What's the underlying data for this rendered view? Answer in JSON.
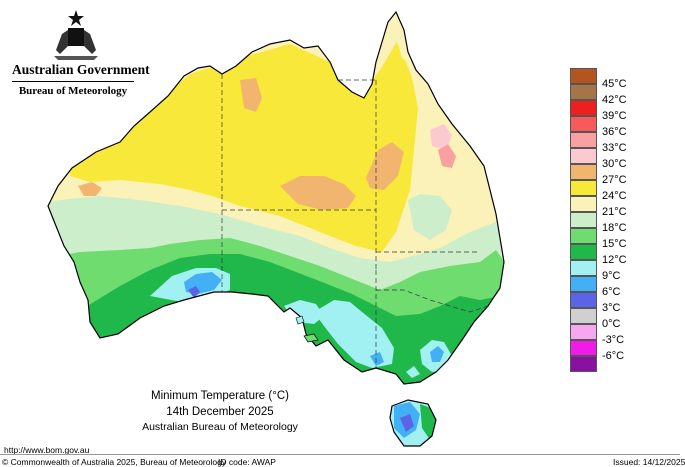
{
  "header": {
    "gov_title": "Australian Government",
    "bureau": "Bureau of Meteorology"
  },
  "legend": {
    "items": [
      {
        "label": "45°C",
        "color": "#b4541e"
      },
      {
        "label": "42°C",
        "color": "#a57449"
      },
      {
        "label": "39°C",
        "color": "#ef1f1f"
      },
      {
        "label": "36°C",
        "color": "#f65a5a"
      },
      {
        "label": "33°C",
        "color": "#f9a0a0"
      },
      {
        "label": "30°C",
        "color": "#fbc9d0"
      },
      {
        "label": "27°C",
        "color": "#f2b56f"
      },
      {
        "label": "24°C",
        "color": "#f7e83a"
      },
      {
        "label": "21°C",
        "color": "#faf2b9"
      },
      {
        "label": "18°C",
        "color": "#cdeeca"
      },
      {
        "label": "15°C",
        "color": "#6fdc6f"
      },
      {
        "label": "12°C",
        "color": "#20b84a"
      },
      {
        "label": "9°C",
        "color": "#a2f1f2"
      },
      {
        "label": "6°C",
        "color": "#43b0f5"
      },
      {
        "label": "3°C",
        "color": "#5b63e6"
      },
      {
        "label": "0°C",
        "color": "#d0d0d0"
      },
      {
        "label": "-3°C",
        "color": "#f5a7f0"
      },
      {
        "label": "-6°C",
        "color": "#f01be8"
      },
      {
        "label": "",
        "color": "#8a10a0"
      }
    ]
  },
  "caption": {
    "title": "Minimum Temperature (°C)",
    "date": "14th December 2025",
    "source": "Australian Bureau of Meteorology"
  },
  "footer": {
    "url": "http://www.bom.gov.au",
    "copyright": "© Commonwealth of Australia 2025, Bureau of Meteorology",
    "id_code": "ID code: AWAP",
    "issued": "Issued: 14/12/2025"
  }
}
